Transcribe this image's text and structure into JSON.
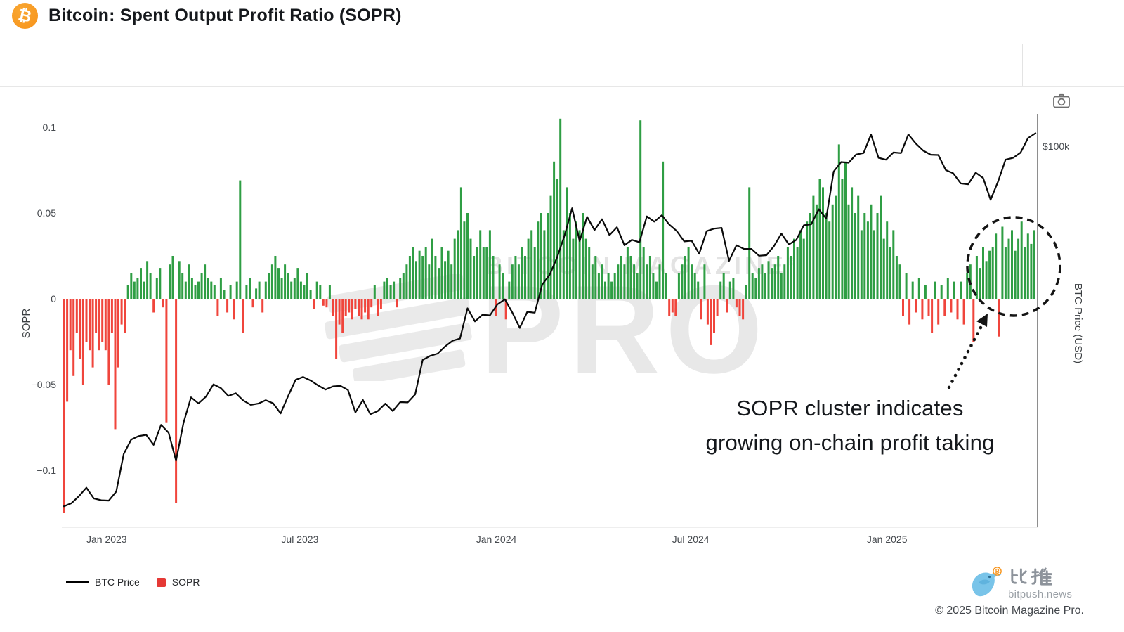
{
  "header": {
    "title": "Bitcoin: Spent Output Profit Ratio (SOPR)",
    "logo_symbol": "₿"
  },
  "watermark": {
    "line1": "BITCOIN MAGAZINE",
    "registered": "®",
    "line2": "PRO"
  },
  "chart_data": {
    "type": "bar+line",
    "title": "Bitcoin: Spent Output Profit Ratio (SOPR)",
    "x_range": [
      "2022-11-20",
      "2025-05-22"
    ],
    "x_ticks": [
      {
        "label": "Jan 2023",
        "date": "2023-01-01"
      },
      {
        "label": "Jul 2023",
        "date": "2023-07-01"
      },
      {
        "label": "Jan 2024",
        "date": "2024-01-01"
      },
      {
        "label": "Jul 2024",
        "date": "2024-07-01"
      },
      {
        "label": "Jan 2025",
        "date": "2025-01-01"
      }
    ],
    "left_axis": {
      "label": "SOPR",
      "ticks": [
        0.1,
        0.05,
        0,
        -0.05,
        -0.1
      ],
      "tick_labels": [
        "0.1",
        "0.05",
        "0",
        "−0.05",
        "−0.1"
      ],
      "range": [
        -0.135,
        0.11
      ],
      "grid": false
    },
    "right_axis": {
      "label": "BTC Price (USD)",
      "scale": "log",
      "tick_values": [
        100000
      ],
      "tick_labels": [
        "$100k"
      ]
    },
    "series": [
      {
        "name": "SOPR",
        "type": "bar",
        "positive_color": "#2f9e44",
        "negative_color": "#f0453c",
        "start_date": "2022-11-22",
        "interval_days": 3,
        "values": [
          -0.125,
          -0.06,
          -0.03,
          -0.045,
          -0.02,
          -0.035,
          -0.05,
          -0.025,
          -0.03,
          -0.04,
          -0.02,
          -0.03,
          -0.025,
          -0.03,
          -0.05,
          -0.02,
          -0.076,
          -0.04,
          -0.015,
          -0.02,
          0.008,
          0.015,
          0.01,
          0.012,
          0.018,
          0.01,
          0.022,
          0.015,
          -0.008,
          0.012,
          0.018,
          -0.005,
          -0.072,
          0.02,
          0.025,
          -0.119,
          0.022,
          0.015,
          0.01,
          0.02,
          0.012,
          0.008,
          0.01,
          0.015,
          0.02,
          0.012,
          0.01,
          0.008,
          -0.01,
          0.012,
          0.005,
          -0.008,
          0.008,
          -0.012,
          0.01,
          0.069,
          -0.02,
          0.008,
          0.012,
          -0.005,
          0.006,
          0.01,
          -0.008,
          0.01,
          0.015,
          0.02,
          0.025,
          0.018,
          0.012,
          0.02,
          0.015,
          0.01,
          0.012,
          0.018,
          0.01,
          0.008,
          0.015,
          0.005,
          -0.006,
          0.01,
          0.008,
          -0.004,
          -0.005,
          0.008,
          -0.01,
          -0.035,
          -0.015,
          -0.02,
          -0.01,
          -0.008,
          -0.012,
          -0.006,
          -0.01,
          -0.012,
          -0.008,
          -0.012,
          -0.005,
          0.008,
          -0.01,
          -0.006,
          0.01,
          0.012,
          0.008,
          0.01,
          -0.005,
          0.012,
          0.015,
          0.02,
          0.025,
          0.03,
          0.022,
          0.028,
          0.025,
          0.03,
          0.02,
          0.035,
          0.025,
          0.018,
          0.03,
          0.022,
          0.028,
          0.02,
          0.035,
          0.04,
          0.065,
          0.045,
          0.05,
          0.035,
          0.025,
          0.03,
          0.04,
          0.03,
          0.03,
          0.04,
          0.025,
          -0.01,
          0.02,
          0.015,
          -0.012,
          0.01,
          0.02,
          0.025,
          0.02,
          0.03,
          0.025,
          0.035,
          0.04,
          0.03,
          0.045,
          0.05,
          0.04,
          0.05,
          0.06,
          0.08,
          0.07,
          0.105,
          0.04,
          0.065,
          0.05,
          0.035,
          0.045,
          0.04,
          0.05,
          0.035,
          0.03,
          0.02,
          0.025,
          0.015,
          0.02,
          0.01,
          0.015,
          0.01,
          0.015,
          0.02,
          0.025,
          0.02,
          0.03,
          0.025,
          0.02,
          0.015,
          0.104,
          0.03,
          0.02,
          0.025,
          0.015,
          0.01,
          0.02,
          0.08,
          0.015,
          -0.01,
          -0.008,
          -0.01,
          0.015,
          0.02,
          0.025,
          0.03,
          0.02,
          0.015,
          0.01,
          -0.012,
          0.02,
          -0.015,
          -0.027,
          -0.02,
          -0.01,
          0.01,
          0.015,
          -0.008,
          0.01,
          0.012,
          -0.005,
          -0.01,
          -0.012,
          0.008,
          0.065,
          0.015,
          0.012,
          0.018,
          0.02,
          0.015,
          0.022,
          0.018,
          0.02,
          0.025,
          0.015,
          0.02,
          0.03,
          0.025,
          0.035,
          0.03,
          0.04,
          0.035,
          0.045,
          0.05,
          0.06,
          0.055,
          0.07,
          0.065,
          0.05,
          0.045,
          0.055,
          0.06,
          0.09,
          0.07,
          0.08,
          0.055,
          0.065,
          0.05,
          0.06,
          0.04,
          0.05,
          0.045,
          0.055,
          0.04,
          0.05,
          0.06,
          0.035,
          0.045,
          0.03,
          0.04,
          0.025,
          0.02,
          -0.01,
          0.015,
          -0.015,
          0.01,
          -0.008,
          0.012,
          -0.012,
          0.008,
          -0.01,
          -0.02,
          0.01,
          -0.015,
          0.008,
          -0.01,
          0.012,
          -0.008,
          0.01,
          -0.012,
          0.01,
          -0.015,
          0.015,
          0.02,
          -0.025,
          0.025,
          0.018,
          0.03,
          0.022,
          0.028,
          0.03,
          0.038,
          -0.022,
          0.042,
          0.03,
          0.035,
          0.04,
          0.028,
          0.035,
          0.045,
          0.03,
          0.038,
          0.032,
          0.04
        ]
      },
      {
        "name": "BTC Price",
        "type": "line",
        "color": "#0a0a0a",
        "start_date": "2022-11-22",
        "interval_days": 7,
        "values": [
          16200,
          16450,
          17050,
          17800,
          16850,
          16700,
          16670,
          17450,
          21100,
          22700,
          23100,
          23250,
          22100,
          24450,
          23500,
          20400,
          24700,
          28100,
          27250,
          28200,
          30000,
          29450,
          28300,
          28680,
          27650,
          27050,
          27225,
          27700,
          27250,
          25900,
          28300,
          30700,
          31150,
          30600,
          29850,
          29225,
          29700,
          29770,
          29170,
          26030,
          27725,
          25800,
          26220,
          27210,
          26220,
          27430,
          27390,
          28520,
          33950,
          34650,
          35050,
          36340,
          37410,
          37815,
          44080,
          41240,
          42660,
          42520,
          44950,
          46110,
          43140,
          39900,
          43300,
          43100,
          49700,
          52250,
          57040,
          63800,
          73100,
          61910,
          69990,
          65450,
          69140,
          63800,
          66410,
          60640,
          62300,
          61550,
          70150,
          68300,
          70550,
          67300,
          65150,
          61800,
          62030,
          58050,
          65100,
          65930,
          66200,
          56030,
          60600,
          59490,
          59500,
          57490,
          57650,
          60310,
          64300,
          60840,
          62280,
          67050,
          67400,
          72720,
          69360,
          88000,
          92300,
          91990,
          95900,
          96600,
          106100,
          94300,
          93400,
          96900,
          96560,
          106150,
          101330,
          97760,
          95780,
          95670,
          88640,
          87220,
          82860,
          82520,
          87490,
          85170,
          76270,
          83690,
          93440,
          94280,
          96800,
          104170,
          106800
        ]
      }
    ],
    "annotation": {
      "text_line1": "SOPR cluster indicates",
      "text_line2": "growing on-chain profit taking"
    },
    "legend": [
      {
        "label": "BTC Price",
        "swatch": "line",
        "color": "#000000"
      },
      {
        "label": "SOPR",
        "swatch": "square",
        "color": "#e53935"
      }
    ]
  },
  "footer": {
    "brand_cn": "比推",
    "brand_domain": "bitpush.news",
    "copyright": "© 2025 Bitcoin Magazine Pro."
  }
}
